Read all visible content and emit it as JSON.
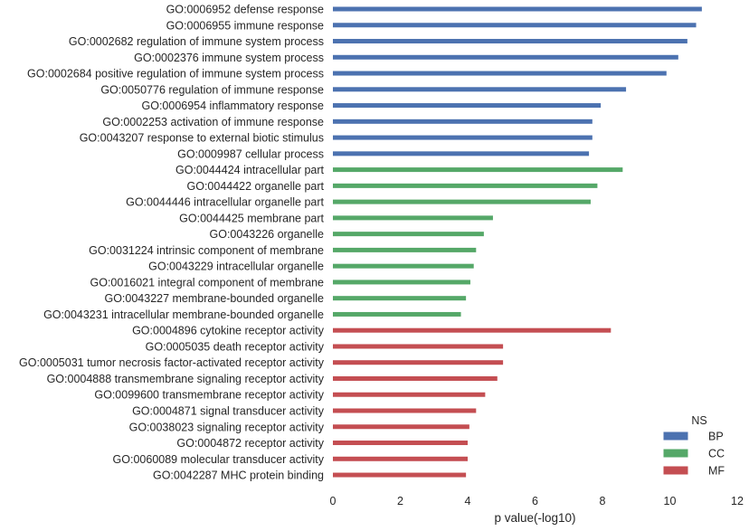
{
  "chart_data": {
    "type": "bar",
    "orientation": "horizontal",
    "xlabel": "p value(-log10)",
    "ylabel": "",
    "xlim": [
      0,
      12
    ],
    "xticks": [
      0,
      2,
      4,
      6,
      8,
      10,
      12
    ],
    "grid": false,
    "legend": {
      "title": "NS",
      "placement": "bottom-right",
      "entries": [
        {
          "name": "BP",
          "color": "#4c72b0"
        },
        {
          "name": "CC",
          "color": "#55a868"
        },
        {
          "name": "MF",
          "color": "#c44e52"
        }
      ]
    },
    "categories": [
      {
        "label": "GO:0006952 defense response",
        "value": 10.95,
        "ns": "BP"
      },
      {
        "label": "GO:0006955 immune response",
        "value": 10.78,
        "ns": "BP"
      },
      {
        "label": "GO:0002682 regulation of immune system process",
        "value": 10.52,
        "ns": "BP"
      },
      {
        "label": "GO:0002376 immune system process",
        "value": 10.25,
        "ns": "BP"
      },
      {
        "label": "GO:0002684 positive regulation of immune system process",
        "value": 9.9,
        "ns": "BP"
      },
      {
        "label": "GO:0050776 regulation of immune response",
        "value": 8.7,
        "ns": "BP"
      },
      {
        "label": "GO:0006954 inflammatory response",
        "value": 7.95,
        "ns": "BP"
      },
      {
        "label": "GO:0002253 activation of immune response",
        "value": 7.7,
        "ns": "BP"
      },
      {
        "label": "GO:0043207 response to external biotic stimulus",
        "value": 7.7,
        "ns": "BP"
      },
      {
        "label": "GO:0009987 cellular process",
        "value": 7.6,
        "ns": "BP"
      },
      {
        "label": "GO:0044424 intracellular part",
        "value": 8.6,
        "ns": "CC"
      },
      {
        "label": "GO:0044422 organelle part",
        "value": 7.85,
        "ns": "CC"
      },
      {
        "label": "GO:0044446 intracellular organelle part",
        "value": 7.65,
        "ns": "CC"
      },
      {
        "label": "GO:0044425 membrane part",
        "value": 4.75,
        "ns": "CC"
      },
      {
        "label": "GO:0043226 organelle",
        "value": 4.48,
        "ns": "CC"
      },
      {
        "label": "GO:0031224 intrinsic component of membrane",
        "value": 4.25,
        "ns": "CC"
      },
      {
        "label": "GO:0043229 intracellular organelle",
        "value": 4.18,
        "ns": "CC"
      },
      {
        "label": "GO:0016021 integral component of membrane",
        "value": 4.08,
        "ns": "CC"
      },
      {
        "label": "GO:0043227 membrane-bounded organelle",
        "value": 3.95,
        "ns": "CC"
      },
      {
        "label": "GO:0043231 intracellular membrane-bounded organelle",
        "value": 3.8,
        "ns": "CC"
      },
      {
        "label": "GO:0004896 cytokine receptor activity",
        "value": 8.25,
        "ns": "MF"
      },
      {
        "label": "GO:0005035 death receptor activity",
        "value": 5.05,
        "ns": "MF"
      },
      {
        "label": "GO:0005031 tumor necrosis factor-activated receptor activity",
        "value": 5.05,
        "ns": "MF"
      },
      {
        "label": "GO:0004888 transmembrane signaling receptor activity",
        "value": 4.88,
        "ns": "MF"
      },
      {
        "label": "GO:0099600 transmembrane receptor activity",
        "value": 4.52,
        "ns": "MF"
      },
      {
        "label": "GO:0004871 signal transducer activity",
        "value": 4.25,
        "ns": "MF"
      },
      {
        "label": "GO:0038023 signaling receptor activity",
        "value": 4.05,
        "ns": "MF"
      },
      {
        "label": "GO:0004872 receptor activity",
        "value": 4.0,
        "ns": "MF"
      },
      {
        "label": "GO:0060089 molecular transducer activity",
        "value": 4.0,
        "ns": "MF"
      },
      {
        "label": "GO:0042287 MHC protein binding",
        "value": 3.95,
        "ns": "MF"
      }
    ]
  }
}
